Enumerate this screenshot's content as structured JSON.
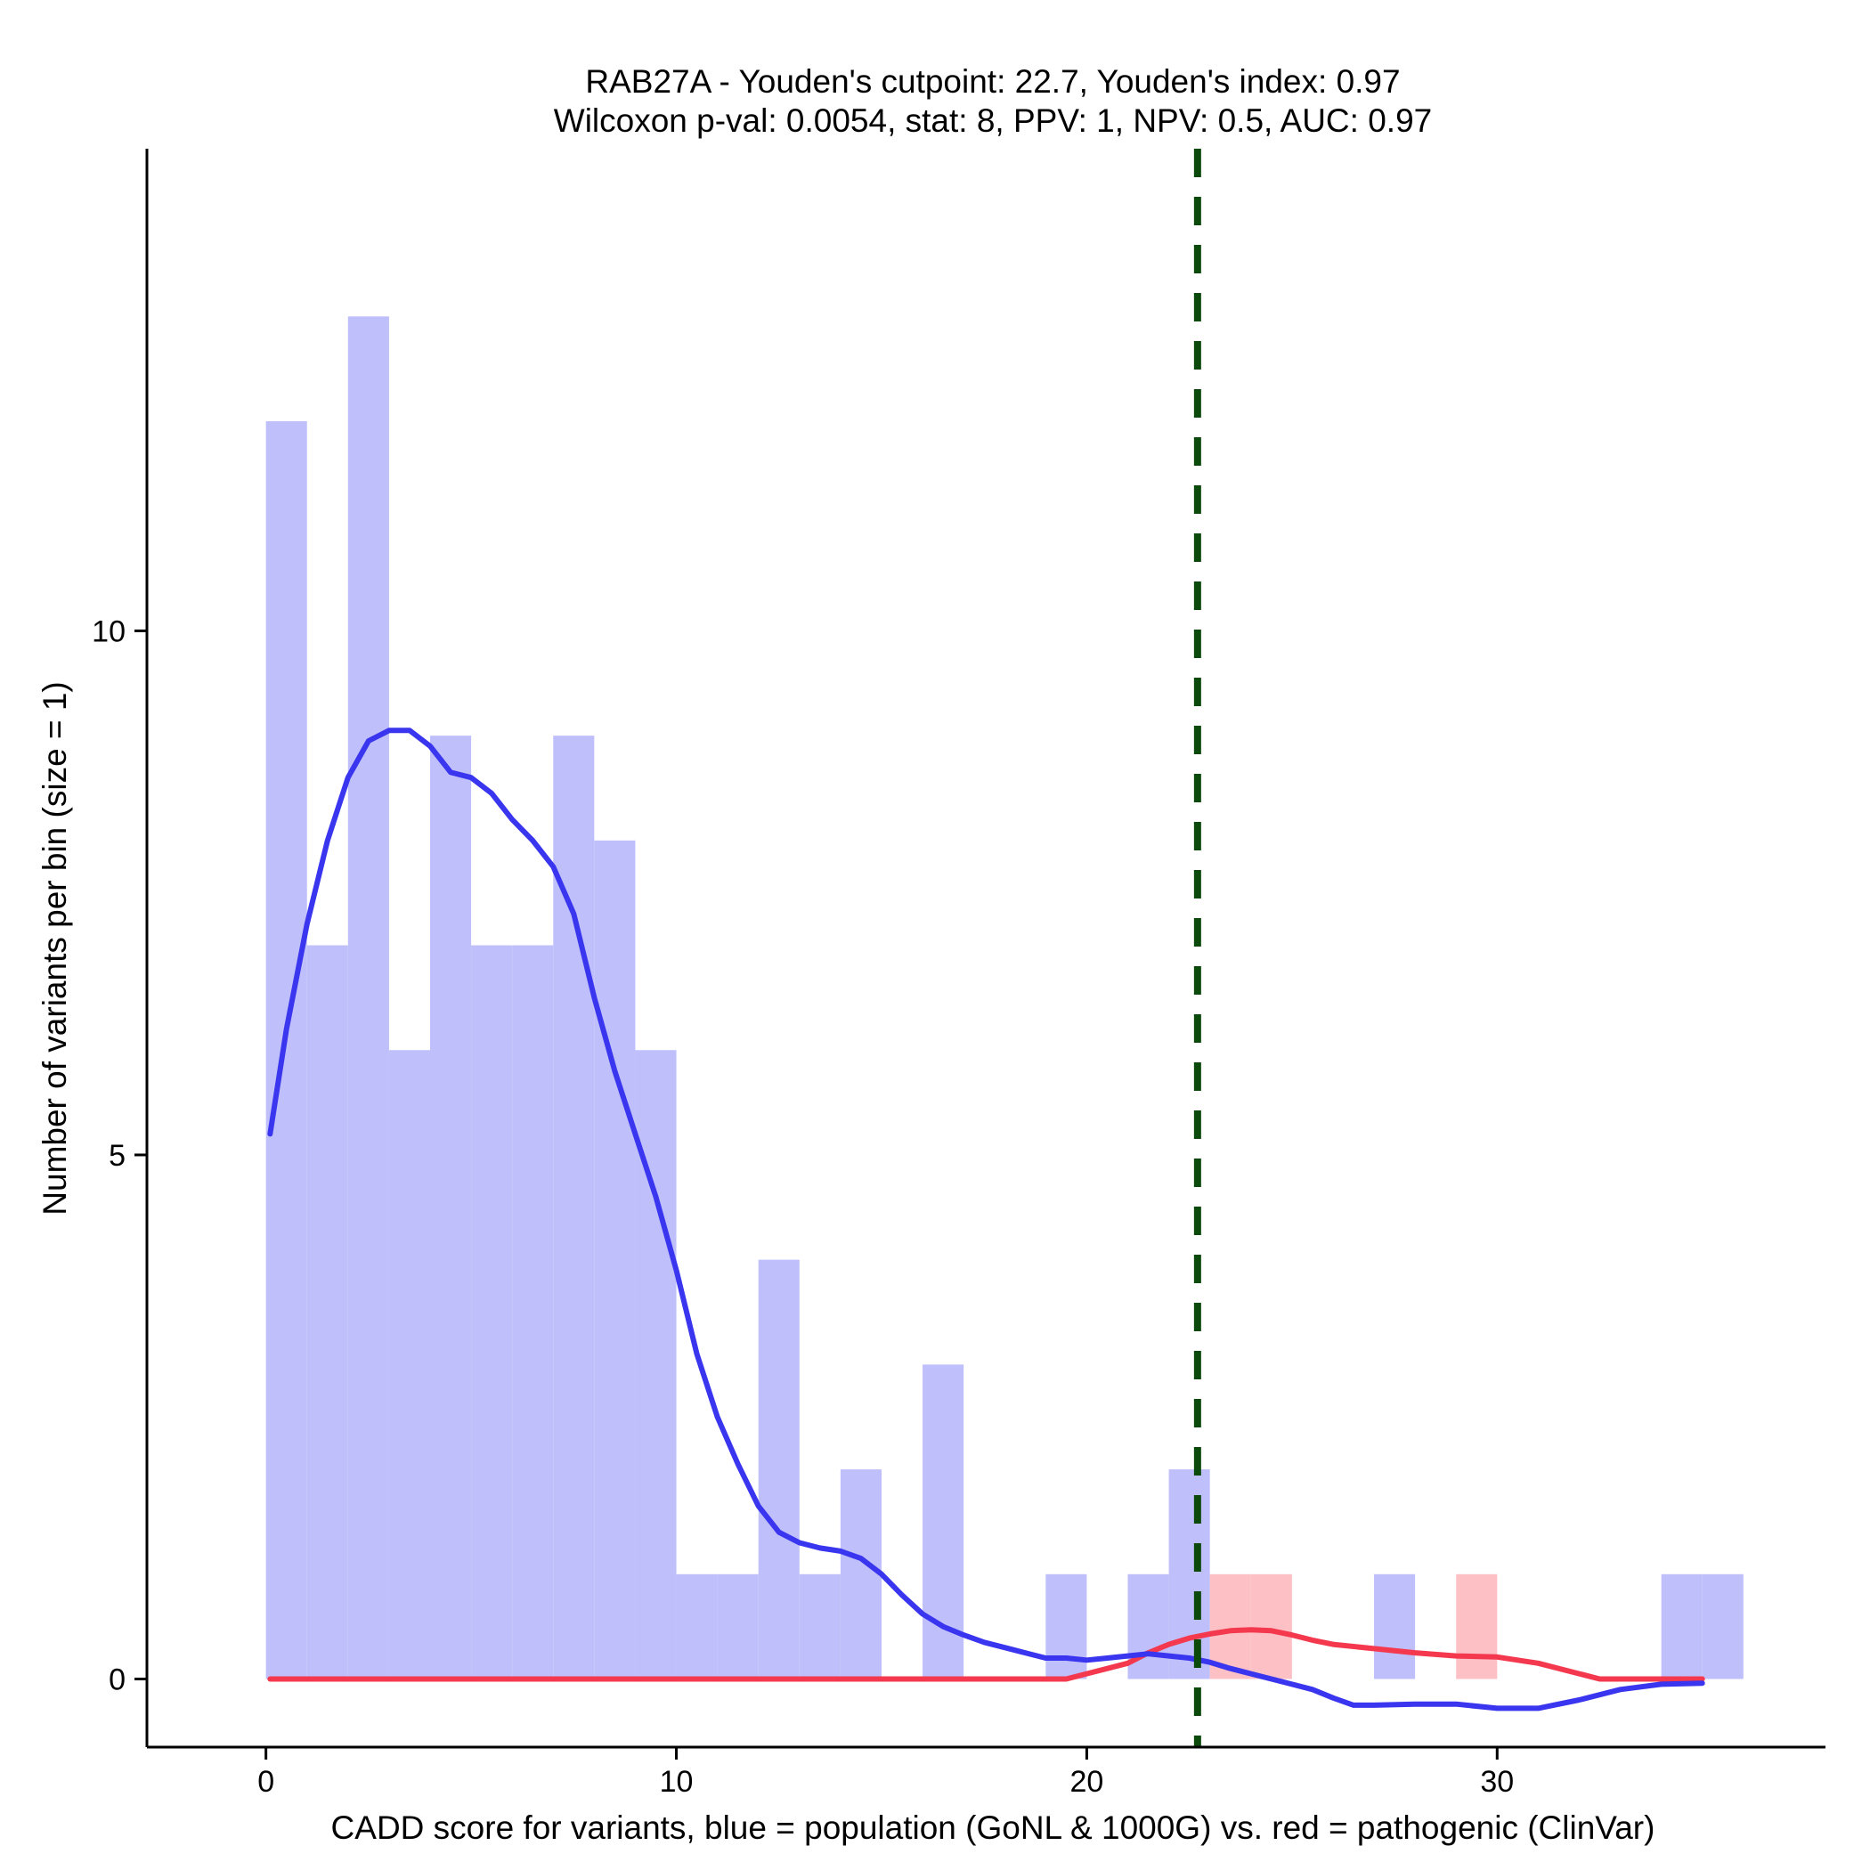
{
  "chart_data": {
    "type": "bar",
    "title_line1": "RAB27A - Youden's cutpoint: 22.7, Youden's index: 0.97",
    "title_line2": "Wilcoxon p-val: 0.0054, stat: 8, PPV: 1, NPV: 0.5, AUC: 0.97",
    "xlabel": "CADD score for variants, blue = population (GoNL & 1000G) vs. red = pathogenic (ClinVar)",
    "ylabel": "Number of variants per bin (size = 1)",
    "xlim": [
      -2.9,
      38
    ],
    "ylim": [
      -0.65,
      14.6
    ],
    "x_ticks": [
      0,
      10,
      20,
      30
    ],
    "y_ticks": [
      0,
      5,
      10
    ],
    "bin_width": 1,
    "cutpoint": 22.7,
    "colors": {
      "population_bar": "#bfbffb",
      "pathogenic_bar": "#fcc0c5",
      "population_line": "#3a35ee",
      "pathogenic_line": "#f4394e",
      "cutpoint_line": "#0b4a0b"
    },
    "series": [
      {
        "key": "population",
        "bins": [
          [
            0,
            12
          ],
          [
            1,
            7
          ],
          [
            2,
            13
          ],
          [
            3,
            6
          ],
          [
            4,
            9
          ],
          [
            5,
            7
          ],
          [
            6,
            7
          ],
          [
            7,
            9
          ],
          [
            8,
            8
          ],
          [
            9,
            6
          ],
          [
            10,
            1
          ],
          [
            11,
            1
          ],
          [
            12,
            4
          ],
          [
            13,
            1
          ],
          [
            14,
            2
          ],
          [
            16,
            3
          ],
          [
            19,
            1
          ],
          [
            21,
            1
          ],
          [
            22,
            2
          ],
          [
            27,
            1
          ],
          [
            34,
            1
          ],
          [
            35,
            1
          ]
        ]
      },
      {
        "key": "pathogenic",
        "bins": [
          [
            23,
            1
          ],
          [
            24,
            1
          ],
          [
            29,
            1
          ]
        ]
      }
    ],
    "density_population": [
      [
        0.1,
        5.2
      ],
      [
        0.5,
        6.2
      ],
      [
        1,
        7.2
      ],
      [
        1.5,
        8.0
      ],
      [
        2,
        8.6
      ],
      [
        2.5,
        8.95
      ],
      [
        3,
        9.05
      ],
      [
        3.5,
        9.05
      ],
      [
        4,
        8.9
      ],
      [
        4.5,
        8.65
      ],
      [
        5,
        8.6
      ],
      [
        5.5,
        8.45
      ],
      [
        6,
        8.2
      ],
      [
        6.5,
        8.0
      ],
      [
        7,
        7.75
      ],
      [
        7.5,
        7.3
      ],
      [
        8,
        6.5
      ],
      [
        8.5,
        5.8
      ],
      [
        9,
        5.2
      ],
      [
        9.5,
        4.6
      ],
      [
        10,
        3.9
      ],
      [
        10.5,
        3.1
      ],
      [
        11,
        2.5
      ],
      [
        11.5,
        2.05
      ],
      [
        12,
        1.65
      ],
      [
        12.5,
        1.4
      ],
      [
        13,
        1.3
      ],
      [
        13.5,
        1.25
      ],
      [
        14,
        1.22
      ],
      [
        14.5,
        1.15
      ],
      [
        15,
        1.0
      ],
      [
        15.5,
        0.8
      ],
      [
        16,
        0.62
      ],
      [
        16.5,
        0.5
      ],
      [
        17,
        0.42
      ],
      [
        17.5,
        0.35
      ],
      [
        18,
        0.3
      ],
      [
        18.5,
        0.25
      ],
      [
        19,
        0.2
      ],
      [
        19.5,
        0.2
      ],
      [
        20,
        0.18
      ],
      [
        20.5,
        0.2
      ],
      [
        21,
        0.22
      ],
      [
        21.5,
        0.24
      ],
      [
        22,
        0.22
      ],
      [
        22.5,
        0.2
      ],
      [
        23,
        0.16
      ],
      [
        23.5,
        0.1
      ],
      [
        24,
        0.05
      ],
      [
        25,
        -0.05
      ],
      [
        25.5,
        -0.1
      ],
      [
        26,
        -0.18
      ],
      [
        26.5,
        -0.25
      ],
      [
        27,
        -0.25
      ],
      [
        28,
        -0.24
      ],
      [
        29,
        -0.24
      ],
      [
        30,
        -0.28
      ],
      [
        31,
        -0.28
      ],
      [
        32,
        -0.2
      ],
      [
        33,
        -0.1
      ],
      [
        34,
        -0.05
      ],
      [
        35,
        -0.04
      ]
    ],
    "density_pathogenic": [
      [
        0.1,
        0
      ],
      [
        19.5,
        0
      ],
      [
        20,
        0.05
      ],
      [
        21,
        0.15
      ],
      [
        21.5,
        0.25
      ],
      [
        22,
        0.33
      ],
      [
        22.5,
        0.39
      ],
      [
        23,
        0.43
      ],
      [
        23.5,
        0.46
      ],
      [
        24,
        0.47
      ],
      [
        24.5,
        0.46
      ],
      [
        25,
        0.42
      ],
      [
        25.5,
        0.37
      ],
      [
        26,
        0.33
      ],
      [
        27,
        0.29
      ],
      [
        28,
        0.25
      ],
      [
        29,
        0.22
      ],
      [
        30,
        0.21
      ],
      [
        31,
        0.15
      ],
      [
        32,
        0.05
      ],
      [
        32.5,
        0
      ],
      [
        35,
        0
      ]
    ]
  }
}
